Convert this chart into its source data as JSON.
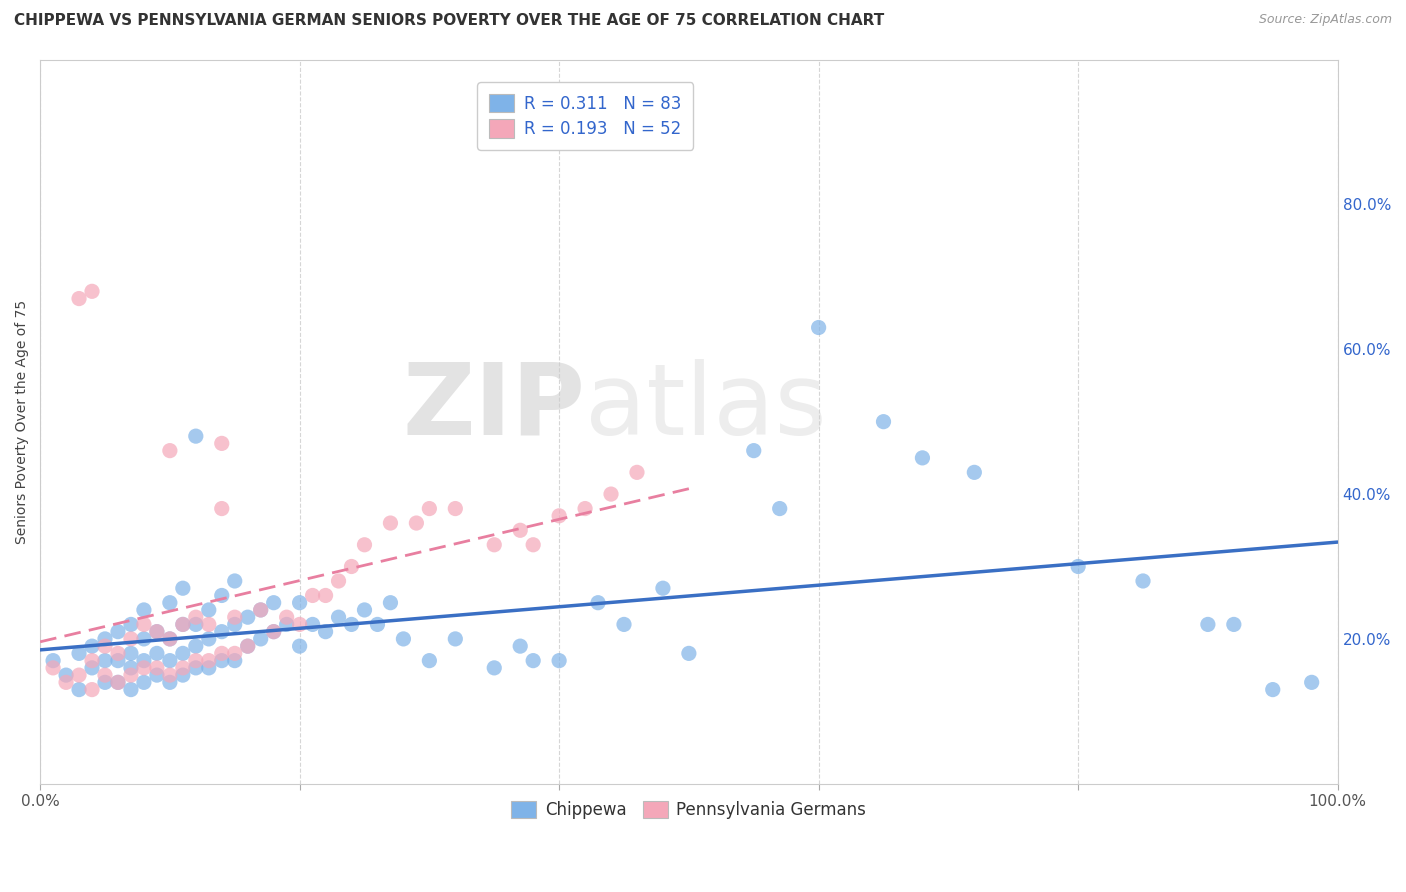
{
  "title": "CHIPPEWA VS PENNSYLVANIA GERMAN SENIORS POVERTY OVER THE AGE OF 75 CORRELATION CHART",
  "source": "Source: ZipAtlas.com",
  "ylabel": "Seniors Poverty Over the Age of 75",
  "xlim": [
    0.0,
    1.0
  ],
  "ylim": [
    0.0,
    1.0
  ],
  "xticks": [
    0.0,
    0.2,
    0.4,
    0.6,
    0.8,
    1.0
  ],
  "yticks": [
    0.2,
    0.4,
    0.6,
    0.8
  ],
  "xtick_labels_bottom": [
    "0.0%",
    "",
    "",
    "",
    "",
    "100.0%"
  ],
  "ytick_labels_right": [
    "20.0%",
    "40.0%",
    "60.0%",
    "80.0%"
  ],
  "chippewa_R": 0.311,
  "chippewa_N": 83,
  "pa_german_R": 0.193,
  "pa_german_N": 52,
  "chippewa_color": "#7fb3e8",
  "pa_german_color": "#f4a7b9",
  "chippewa_line_color": "#3a6fc4",
  "pa_german_line_color": "#e87fa0",
  "watermark_zip": "ZIP",
  "watermark_atlas": "atlas",
  "title_fontsize": 11,
  "label_fontsize": 10,
  "tick_fontsize": 11,
  "legend_fontsize": 12,
  "chippewa_x": [
    0.01,
    0.02,
    0.03,
    0.03,
    0.04,
    0.04,
    0.05,
    0.05,
    0.05,
    0.06,
    0.06,
    0.06,
    0.07,
    0.07,
    0.07,
    0.07,
    0.08,
    0.08,
    0.08,
    0.08,
    0.09,
    0.09,
    0.09,
    0.1,
    0.1,
    0.1,
    0.1,
    0.11,
    0.11,
    0.11,
    0.11,
    0.12,
    0.12,
    0.12,
    0.12,
    0.13,
    0.13,
    0.13,
    0.14,
    0.14,
    0.14,
    0.15,
    0.15,
    0.15,
    0.16,
    0.16,
    0.17,
    0.17,
    0.18,
    0.18,
    0.19,
    0.2,
    0.2,
    0.21,
    0.22,
    0.23,
    0.24,
    0.25,
    0.26,
    0.27,
    0.28,
    0.3,
    0.32,
    0.35,
    0.37,
    0.38,
    0.4,
    0.43,
    0.45,
    0.48,
    0.5,
    0.55,
    0.57,
    0.6,
    0.65,
    0.68,
    0.72,
    0.8,
    0.85,
    0.9,
    0.92,
    0.95,
    0.98
  ],
  "chippewa_y": [
    0.17,
    0.15,
    0.13,
    0.18,
    0.16,
    0.19,
    0.14,
    0.17,
    0.2,
    0.14,
    0.17,
    0.21,
    0.13,
    0.16,
    0.18,
    0.22,
    0.14,
    0.17,
    0.2,
    0.24,
    0.15,
    0.18,
    0.21,
    0.14,
    0.17,
    0.2,
    0.25,
    0.15,
    0.18,
    0.22,
    0.27,
    0.16,
    0.19,
    0.22,
    0.48,
    0.16,
    0.2,
    0.24,
    0.17,
    0.21,
    0.26,
    0.17,
    0.22,
    0.28,
    0.19,
    0.23,
    0.2,
    0.24,
    0.21,
    0.25,
    0.22,
    0.19,
    0.25,
    0.22,
    0.21,
    0.23,
    0.22,
    0.24,
    0.22,
    0.25,
    0.2,
    0.17,
    0.2,
    0.16,
    0.19,
    0.17,
    0.17,
    0.25,
    0.22,
    0.27,
    0.18,
    0.46,
    0.38,
    0.63,
    0.5,
    0.45,
    0.43,
    0.3,
    0.28,
    0.22,
    0.22,
    0.13,
    0.14
  ],
  "pa_german_x": [
    0.01,
    0.02,
    0.03,
    0.04,
    0.04,
    0.05,
    0.05,
    0.06,
    0.06,
    0.07,
    0.07,
    0.08,
    0.08,
    0.09,
    0.09,
    0.1,
    0.1,
    0.11,
    0.11,
    0.12,
    0.12,
    0.13,
    0.13,
    0.14,
    0.14,
    0.15,
    0.15,
    0.16,
    0.17,
    0.18,
    0.19,
    0.2,
    0.21,
    0.22,
    0.23,
    0.24,
    0.25,
    0.27,
    0.29,
    0.3,
    0.32,
    0.35,
    0.37,
    0.38,
    0.4,
    0.42,
    0.44,
    0.46,
    0.03,
    0.04,
    0.1,
    0.14
  ],
  "pa_german_y": [
    0.16,
    0.14,
    0.15,
    0.13,
    0.17,
    0.15,
    0.19,
    0.14,
    0.18,
    0.15,
    0.2,
    0.16,
    0.22,
    0.16,
    0.21,
    0.15,
    0.2,
    0.16,
    0.22,
    0.17,
    0.23,
    0.17,
    0.22,
    0.18,
    0.38,
    0.18,
    0.23,
    0.19,
    0.24,
    0.21,
    0.23,
    0.22,
    0.26,
    0.26,
    0.28,
    0.3,
    0.33,
    0.36,
    0.36,
    0.38,
    0.38,
    0.33,
    0.35,
    0.33,
    0.37,
    0.38,
    0.4,
    0.43,
    0.67,
    0.68,
    0.46,
    0.47
  ]
}
